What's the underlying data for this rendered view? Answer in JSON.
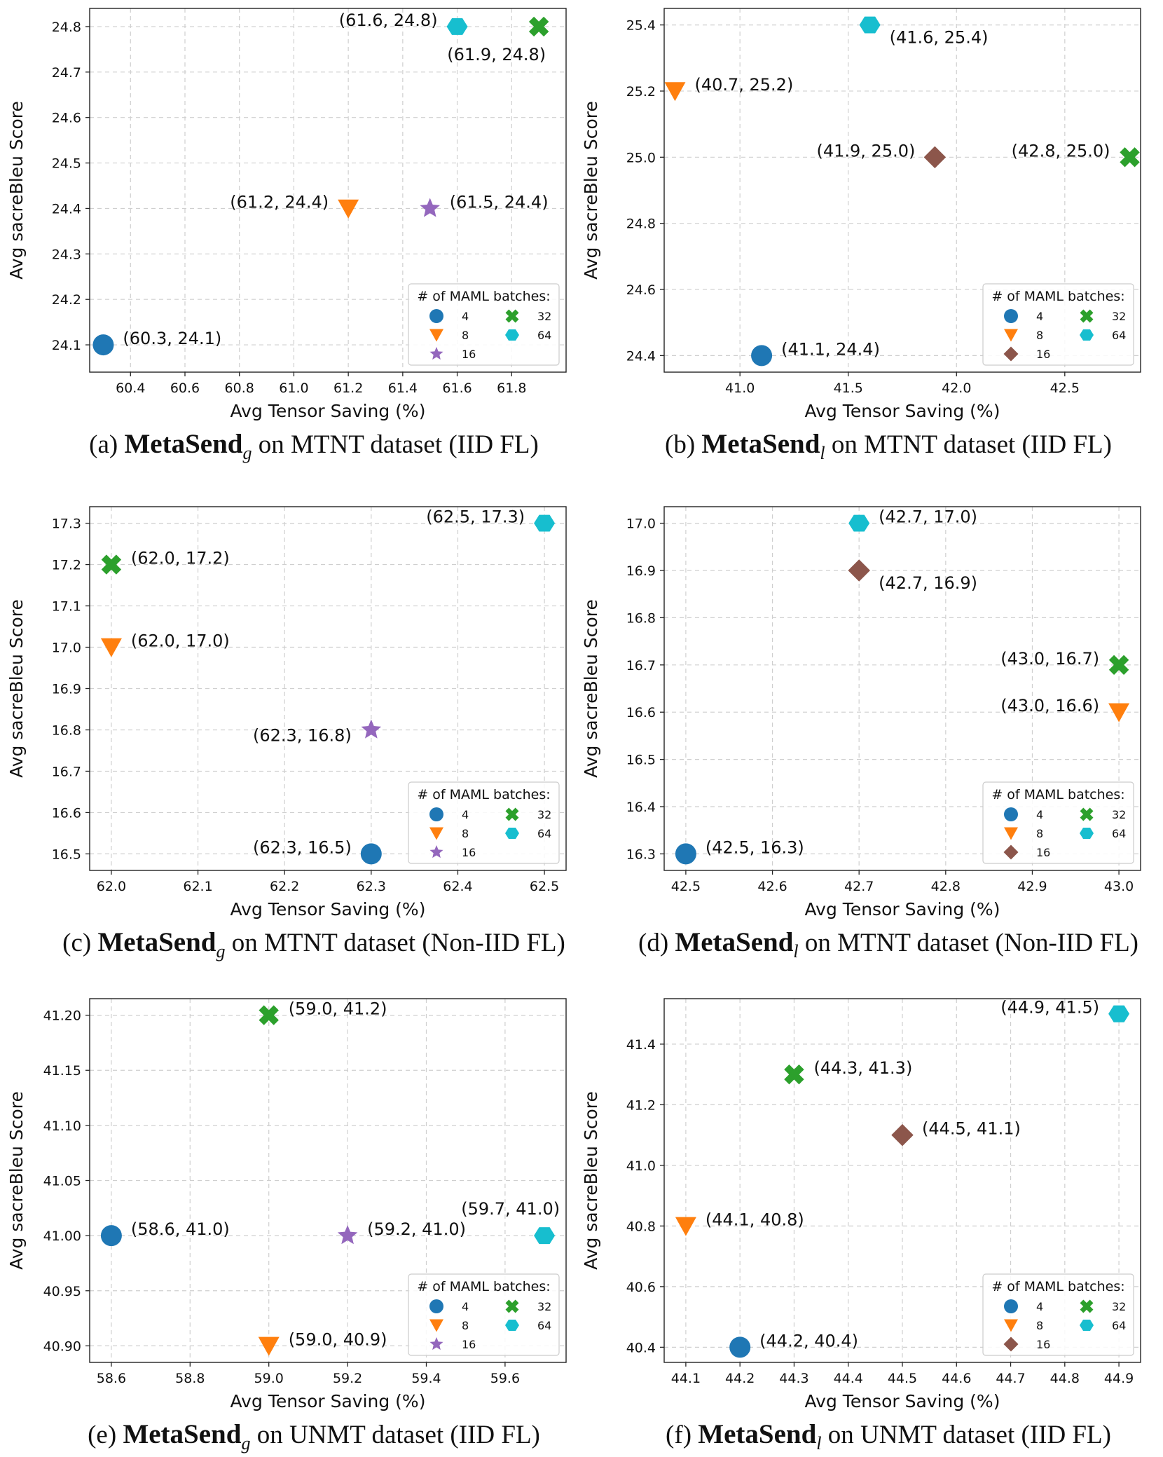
{
  "figure": {
    "legend_title": "# of MAML batches:"
  },
  "chart_data": [
    {
      "type": "scatter",
      "caption": {
        "label": "(a)",
        "method": "MetaSend",
        "subscript": "g",
        "rest": "on MTNT dataset (IID FL)"
      },
      "xlabel": "Avg Tensor Saving (%)",
      "ylabel": "Avg sacreBleu Score",
      "xlim": [
        60.25,
        62.0
      ],
      "ylim": [
        24.04,
        24.84
      ],
      "xticks": [
        60.4,
        60.6,
        60.8,
        61.0,
        61.2,
        61.4,
        61.6,
        61.8
      ],
      "yticks": [
        24.1,
        24.2,
        24.3,
        24.4,
        24.5,
        24.6,
        24.7,
        24.8
      ],
      "tick_decimals": [
        1,
        1
      ],
      "grid": true,
      "legend_position": "lower right",
      "legend": [
        {
          "label": "4",
          "marker": "circle",
          "color": "#1f77b4"
        },
        {
          "label": "32",
          "marker": "x",
          "color": "#2ca02c"
        },
        {
          "label": "8",
          "marker": "triangle-down",
          "color": "#ff7f0e"
        },
        {
          "label": "64",
          "marker": "hexagon",
          "color": "#17becf"
        },
        {
          "label": "16",
          "marker": "star",
          "color": "#9467bd"
        }
      ],
      "points": [
        {
          "batches": "4",
          "x": 60.3,
          "y": 24.1,
          "label": "(60.3, 24.1)",
          "label_side": "right-up"
        },
        {
          "batches": "8",
          "x": 61.2,
          "y": 24.4,
          "label": "(61.2, 24.4)",
          "label_side": "left-up"
        },
        {
          "batches": "16",
          "x": 61.5,
          "y": 24.4,
          "label": "(61.5, 24.4)",
          "label_side": "right-up"
        },
        {
          "batches": "32",
          "x": 61.9,
          "y": 24.8,
          "label": "(61.9, 24.8)",
          "label_side": "below-left"
        },
        {
          "batches": "64",
          "x": 61.6,
          "y": 24.8,
          "label": "(61.6, 24.8)",
          "label_side": "left-up"
        }
      ]
    },
    {
      "type": "scatter",
      "caption": {
        "label": "(b)",
        "method": "MetaSend",
        "subscript": "l",
        "rest": "on MTNT dataset (IID FL)"
      },
      "xlabel": "Avg Tensor Saving (%)",
      "ylabel": "Avg sacreBleu Score",
      "xlim": [
        40.65,
        42.85
      ],
      "ylim": [
        24.35,
        25.45
      ],
      "xticks": [
        41.0,
        41.5,
        42.0,
        42.5
      ],
      "yticks": [
        24.4,
        24.6,
        24.8,
        25.0,
        25.2,
        25.4
      ],
      "tick_decimals": [
        1,
        1
      ],
      "grid": true,
      "legend_position": "lower right",
      "legend": [
        {
          "label": "4",
          "marker": "circle",
          "color": "#1f77b4"
        },
        {
          "label": "32",
          "marker": "x",
          "color": "#2ca02c"
        },
        {
          "label": "8",
          "marker": "triangle-down",
          "color": "#ff7f0e"
        },
        {
          "label": "64",
          "marker": "hexagon",
          "color": "#17becf"
        },
        {
          "label": "16",
          "marker": "diamond",
          "color": "#8c564b"
        }
      ],
      "points": [
        {
          "batches": "4",
          "x": 41.1,
          "y": 24.4,
          "label": "(41.1, 24.4)",
          "label_side": "right-up"
        },
        {
          "batches": "8",
          "x": 40.7,
          "y": 25.2,
          "label": "(40.7, 25.2)",
          "label_side": "right-up"
        },
        {
          "batches": "16",
          "x": 41.9,
          "y": 25.0,
          "label": "(41.9, 25.0)",
          "label_side": "left-up"
        },
        {
          "batches": "32",
          "x": 42.8,
          "y": 25.0,
          "label": "(42.8, 25.0)",
          "label_side": "left-up"
        },
        {
          "batches": "64",
          "x": 41.6,
          "y": 25.4,
          "label": "(41.6, 25.4)",
          "label_side": "right-down"
        }
      ]
    },
    {
      "type": "scatter",
      "caption": {
        "label": "(c)",
        "method": "MetaSend",
        "subscript": "g",
        "rest": "on MTNT dataset (Non-IID FL)"
      },
      "xlabel": "Avg Tensor Saving (%)",
      "ylabel": "Avg sacreBleu Score",
      "xlim": [
        61.975,
        62.525
      ],
      "ylim": [
        16.46,
        17.34
      ],
      "xticks": [
        62.0,
        62.1,
        62.2,
        62.3,
        62.4,
        62.5
      ],
      "yticks": [
        16.5,
        16.6,
        16.7,
        16.8,
        16.9,
        17.0,
        17.1,
        17.2,
        17.3
      ],
      "tick_decimals": [
        1,
        1
      ],
      "grid": true,
      "legend_position": "lower right",
      "legend": [
        {
          "label": "4",
          "marker": "circle",
          "color": "#1f77b4"
        },
        {
          "label": "32",
          "marker": "x",
          "color": "#2ca02c"
        },
        {
          "label": "8",
          "marker": "triangle-down",
          "color": "#ff7f0e"
        },
        {
          "label": "64",
          "marker": "hexagon",
          "color": "#17becf"
        },
        {
          "label": "16",
          "marker": "star",
          "color": "#9467bd"
        }
      ],
      "points": [
        {
          "batches": "4",
          "x": 62.3,
          "y": 16.5,
          "label": "(62.3, 16.5)",
          "label_side": "left-up"
        },
        {
          "batches": "8",
          "x": 62.0,
          "y": 17.0,
          "label": "(62.0, 17.0)",
          "label_side": "right-up"
        },
        {
          "batches": "16",
          "x": 62.3,
          "y": 16.8,
          "label": "(62.3, 16.8)",
          "label_side": "left-down"
        },
        {
          "batches": "32",
          "x": 62.0,
          "y": 17.2,
          "label": "(62.0, 17.2)",
          "label_side": "right-up"
        },
        {
          "batches": "64",
          "x": 62.5,
          "y": 17.3,
          "label": "(62.5, 17.3)",
          "label_side": "left-up"
        }
      ]
    },
    {
      "type": "scatter",
      "caption": {
        "label": "(d)",
        "method": "MetaSend",
        "subscript": "l",
        "rest": "on MTNT dataset (Non-IID FL)"
      },
      "xlabel": "Avg Tensor Saving (%)",
      "ylabel": "Avg sacreBleu Score",
      "xlim": [
        42.475,
        43.025
      ],
      "ylim": [
        16.265,
        17.035
      ],
      "xticks": [
        42.5,
        42.6,
        42.7,
        42.8,
        42.9,
        43.0
      ],
      "yticks": [
        16.3,
        16.4,
        16.5,
        16.6,
        16.7,
        16.8,
        16.9,
        17.0
      ],
      "tick_decimals": [
        1,
        1
      ],
      "grid": true,
      "legend_position": "lower right",
      "legend": [
        {
          "label": "4",
          "marker": "circle",
          "color": "#1f77b4"
        },
        {
          "label": "32",
          "marker": "x",
          "color": "#2ca02c"
        },
        {
          "label": "8",
          "marker": "triangle-down",
          "color": "#ff7f0e"
        },
        {
          "label": "64",
          "marker": "hexagon",
          "color": "#17becf"
        },
        {
          "label": "16",
          "marker": "diamond",
          "color": "#8c564b"
        }
      ],
      "points": [
        {
          "batches": "4",
          "x": 42.5,
          "y": 16.3,
          "label": "(42.5, 16.3)",
          "label_side": "right-up"
        },
        {
          "batches": "8",
          "x": 43.0,
          "y": 16.6,
          "label": "(43.0, 16.6)",
          "label_side": "left-up"
        },
        {
          "batches": "16",
          "x": 42.7,
          "y": 16.9,
          "label": "(42.7, 16.9)",
          "label_side": "right-down"
        },
        {
          "batches": "32",
          "x": 43.0,
          "y": 16.7,
          "label": "(43.0, 16.7)",
          "label_side": "left-up"
        },
        {
          "batches": "64",
          "x": 42.7,
          "y": 17.0,
          "label": "(42.7, 17.0)",
          "label_side": "right-up"
        }
      ]
    },
    {
      "type": "scatter",
      "caption": {
        "label": "(e)",
        "method": "MetaSend",
        "subscript": "g",
        "rest": "on UNMT dataset (IID FL)"
      },
      "xlabel": "Avg Tensor Saving (%)",
      "ylabel": "Avg sacreBleu Score",
      "xlim": [
        58.545,
        59.755
      ],
      "ylim": [
        40.885,
        41.215
      ],
      "xticks": [
        58.6,
        58.8,
        59.0,
        59.2,
        59.4,
        59.6
      ],
      "yticks": [
        40.9,
        40.95,
        41.0,
        41.05,
        41.1,
        41.15,
        41.2
      ],
      "tick_decimals": [
        1,
        2
      ],
      "grid": true,
      "legend_position": "lower right",
      "legend": [
        {
          "label": "4",
          "marker": "circle",
          "color": "#1f77b4"
        },
        {
          "label": "32",
          "marker": "x",
          "color": "#2ca02c"
        },
        {
          "label": "8",
          "marker": "triangle-down",
          "color": "#ff7f0e"
        },
        {
          "label": "64",
          "marker": "hexagon",
          "color": "#17becf"
        },
        {
          "label": "16",
          "marker": "star",
          "color": "#9467bd"
        }
      ],
      "points": [
        {
          "batches": "4",
          "x": 58.6,
          "y": 41.0,
          "label": "(58.6, 41.0)",
          "label_side": "right-up"
        },
        {
          "batches": "8",
          "x": 59.0,
          "y": 40.9,
          "label": "(59.0, 40.9)",
          "label_side": "right-up"
        },
        {
          "batches": "16",
          "x": 59.2,
          "y": 41.0,
          "label": "(59.2, 41.0)",
          "label_side": "right-up"
        },
        {
          "batches": "32",
          "x": 59.0,
          "y": 41.2,
          "label": "(59.0, 41.2)",
          "label_side": "right-up"
        },
        {
          "batches": "64",
          "x": 59.7,
          "y": 41.0,
          "label": "(59.7, 41.0)",
          "label_side": "above-left"
        }
      ]
    },
    {
      "type": "scatter",
      "caption": {
        "label": "(f)",
        "method": "MetaSend",
        "subscript": "l",
        "rest": "on UNMT dataset (IID FL)"
      },
      "xlabel": "Avg Tensor Saving (%)",
      "ylabel": "Avg sacreBleu Score",
      "xlim": [
        44.06,
        44.94
      ],
      "ylim": [
        40.35,
        41.55
      ],
      "xticks": [
        44.1,
        44.2,
        44.3,
        44.4,
        44.5,
        44.6,
        44.7,
        44.8,
        44.9
      ],
      "yticks": [
        40.4,
        40.6,
        40.8,
        41.0,
        41.2,
        41.4
      ],
      "tick_decimals": [
        1,
        1
      ],
      "grid": true,
      "legend_position": "lower right",
      "legend": [
        {
          "label": "4",
          "marker": "circle",
          "color": "#1f77b4"
        },
        {
          "label": "32",
          "marker": "x",
          "color": "#2ca02c"
        },
        {
          "label": "8",
          "marker": "triangle-down",
          "color": "#ff7f0e"
        },
        {
          "label": "64",
          "marker": "hexagon",
          "color": "#17becf"
        },
        {
          "label": "16",
          "marker": "diamond",
          "color": "#8c564b"
        }
      ],
      "points": [
        {
          "batches": "4",
          "x": 44.2,
          "y": 40.4,
          "label": "(44.2, 40.4)",
          "label_side": "right-up"
        },
        {
          "batches": "8",
          "x": 44.1,
          "y": 40.8,
          "label": "(44.1, 40.8)",
          "label_side": "right-up"
        },
        {
          "batches": "16",
          "x": 44.5,
          "y": 41.1,
          "label": "(44.5, 41.1)",
          "label_side": "right-up"
        },
        {
          "batches": "32",
          "x": 44.3,
          "y": 41.3,
          "label": "(44.3, 41.3)",
          "label_side": "right-up"
        },
        {
          "batches": "64",
          "x": 44.9,
          "y": 41.5,
          "label": "(44.9, 41.5)",
          "label_side": "left-up"
        }
      ]
    }
  ]
}
